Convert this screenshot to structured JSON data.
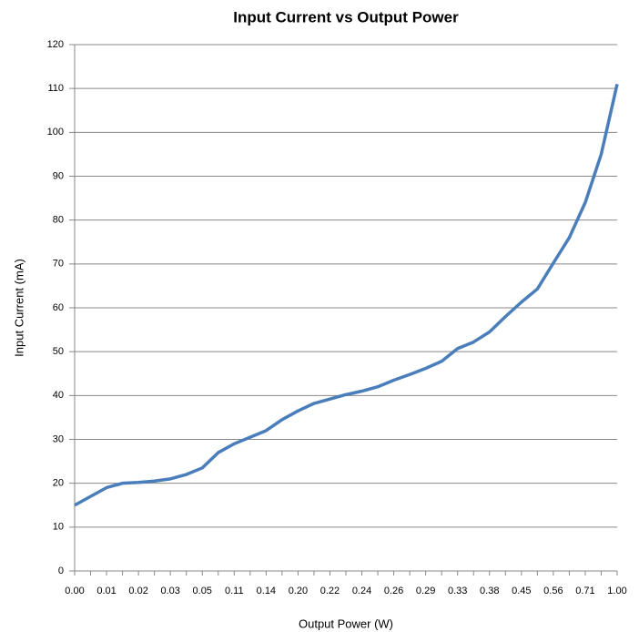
{
  "chart_data": {
    "type": "line",
    "title": "Input Current vs Output Power",
    "x_label": "Output Power (W)",
    "y_label": "Input Current (mA)",
    "categories": [
      "0.00",
      null,
      "0.01",
      null,
      "0.02",
      null,
      "0.03",
      null,
      "0.05",
      null,
      "0.11",
      null,
      "0.14",
      null,
      "0.20",
      null,
      "0.22",
      null,
      "0.24",
      null,
      "0.26",
      null,
      "0.29",
      null,
      "0.33",
      null,
      "0.38",
      null,
      "0.45",
      null,
      "0.56",
      null,
      "0.71",
      null,
      "1.00"
    ],
    "series": [
      {
        "name": "Input Current",
        "color": "#4a7ebb",
        "values": [
          15,
          17,
          19,
          20,
          20.2,
          20.5,
          21,
          22,
          23.5,
          27,
          29,
          30.5,
          32,
          34.5,
          36.5,
          38.2,
          39.2,
          40.2,
          41,
          42,
          43.5,
          44.8,
          46.2,
          47.8,
          50.7,
          52.2,
          54.5,
          58,
          61.3,
          64.3,
          70.2,
          76,
          84,
          95,
          111
        ]
      }
    ],
    "ylim": [
      0,
      120
    ],
    "yticks": [
      0,
      10,
      20,
      30,
      40,
      50,
      60,
      70,
      80,
      90,
      100,
      110,
      120
    ],
    "grid": true
  }
}
